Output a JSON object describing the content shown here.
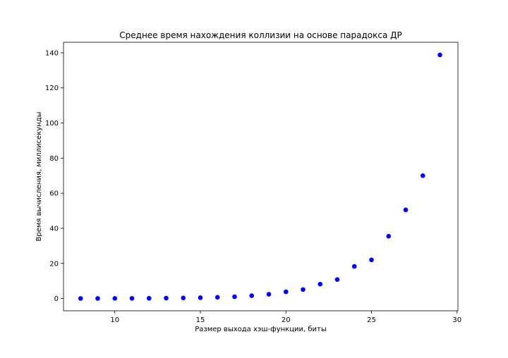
{
  "chart_data": {
    "type": "scatter",
    "title": "Среднее время нахождения коллизии на основе парадокса ДР",
    "xlabel": "Размер выхода хэш-функции, биты",
    "ylabel": "Время вычисления, миллисекунды",
    "xlim": [
      7.0,
      30.05
    ],
    "ylim": [
      -7,
      146
    ],
    "xticks": [
      10,
      15,
      20,
      25,
      30
    ],
    "yticks": [
      0,
      20,
      40,
      60,
      80,
      100,
      120,
      140
    ],
    "grid": false,
    "marker_color": "#0000ff",
    "series": [
      {
        "x": [
          8,
          9,
          10,
          11,
          12,
          13,
          14,
          15,
          16,
          17,
          18,
          19,
          20,
          21,
          22,
          23,
          24,
          25,
          26,
          27,
          28,
          29
        ],
        "y": [
          0.02,
          0.03,
          0.05,
          0.08,
          0.12,
          0.2,
          0.3,
          0.45,
          0.7,
          1.0,
          1.6,
          2.4,
          3.8,
          5.1,
          8.2,
          10.8,
          18.3,
          22.0,
          35.5,
          50.5,
          70.0,
          138.8
        ]
      }
    ]
  }
}
